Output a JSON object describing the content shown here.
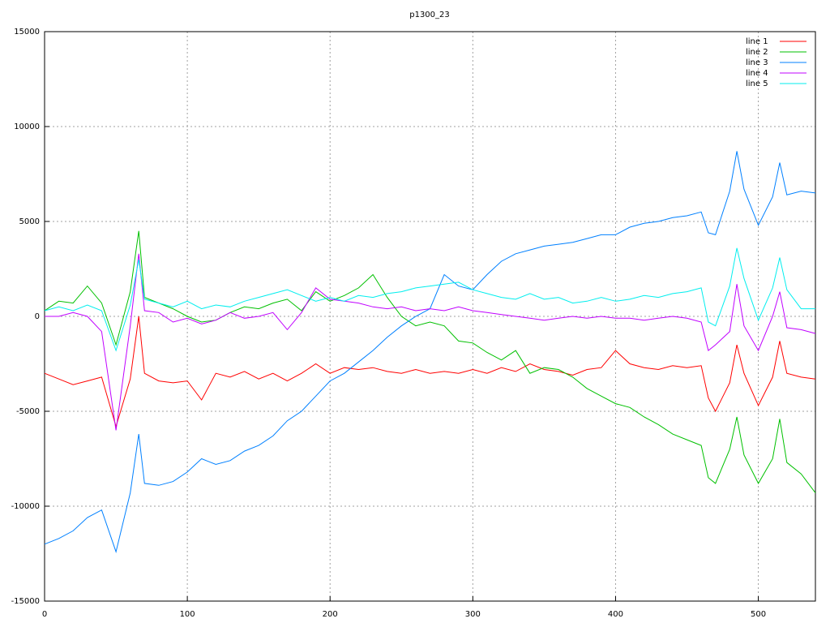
{
  "chart_data": {
    "type": "line",
    "title": "p1300_23",
    "x": [
      0,
      10,
      20,
      30,
      40,
      50,
      60,
      66,
      70,
      80,
      90,
      100,
      110,
      120,
      130,
      140,
      150,
      160,
      170,
      180,
      190,
      200,
      210,
      220,
      230,
      240,
      250,
      260,
      270,
      280,
      290,
      300,
      310,
      320,
      330,
      340,
      350,
      360,
      370,
      380,
      390,
      400,
      410,
      420,
      430,
      440,
      450,
      460,
      465,
      470,
      480,
      485,
      490,
      500,
      510,
      515,
      520,
      530,
      540
    ],
    "series": [
      {
        "name": "line 1",
        "color": "#ff0000",
        "values": [
          -3000,
          -3300,
          -3600,
          -3400,
          -3200,
          -5800,
          -3300,
          0,
          -3000,
          -3400,
          -3500,
          -3400,
          -4400,
          -3000,
          -3200,
          -2900,
          -3300,
          -3000,
          -3400,
          -3000,
          -2500,
          -3000,
          -2700,
          -2800,
          -2700,
          -2900,
          -3000,
          -2800,
          -3000,
          -2900,
          -3000,
          -2800,
          -3000,
          -2700,
          -2900,
          -2500,
          -2800,
          -2900,
          -3100,
          -2800,
          -2700,
          -1800,
          -2500,
          -2700,
          -2800,
          -2600,
          -2700,
          -2600,
          -4300,
          -5000,
          -3500,
          -1500,
          -3000,
          -4700,
          -3200,
          -1300,
          -3000,
          -3200,
          -3300
        ]
      },
      {
        "name": "line 2",
        "color": "#00c000",
        "values": [
          300,
          800,
          700,
          1600,
          700,
          -1500,
          1300,
          4500,
          1000,
          700,
          400,
          0,
          -300,
          -200,
          200,
          500,
          400,
          700,
          900,
          300,
          1300,
          800,
          1100,
          1500,
          2200,
          1000,
          0,
          -500,
          -300,
          -500,
          -1300,
          -1400,
          -1900,
          -2300,
          -1800,
          -3000,
          -2700,
          -2800,
          -3200,
          -3800,
          -4200,
          -4600,
          -4800,
          -5300,
          -5700,
          -6200,
          -6500,
          -6800,
          -8500,
          -8800,
          -7000,
          -5300,
          -7300,
          -8800,
          -7500,
          -5400,
          -7700,
          -8300,
          -9300
        ]
      },
      {
        "name": "line 3",
        "color": "#0080ff",
        "values": [
          -12000,
          -11700,
          -11300,
          -10600,
          -10200,
          -12400,
          -9300,
          -6200,
          -8800,
          -8900,
          -8700,
          -8200,
          -7500,
          -7800,
          -7600,
          -7100,
          -6800,
          -6300,
          -5500,
          -5000,
          -4200,
          -3400,
          -3000,
          -2400,
          -1800,
          -1100,
          -500,
          0,
          400,
          2200,
          1600,
          1400,
          2200,
          2900,
          3300,
          3500,
          3700,
          3800,
          3900,
          4100,
          4300,
          4300,
          4700,
          4900,
          5000,
          5200,
          5300,
          5500,
          4400,
          4300,
          6600,
          8700,
          6700,
          4800,
          6300,
          8100,
          6400,
          6600,
          6500
        ]
      },
      {
        "name": "line 4",
        "color": "#c000ff",
        "values": [
          0,
          0,
          200,
          0,
          -800,
          -6000,
          -500,
          3300,
          300,
          200,
          -300,
          -100,
          -400,
          -200,
          200,
          -100,
          0,
          200,
          -700,
          200,
          1500,
          900,
          800,
          700,
          500,
          400,
          500,
          300,
          400,
          300,
          500,
          300,
          200,
          100,
          0,
          -100,
          -200,
          -100,
          0,
          -100,
          0,
          -100,
          -100,
          -200,
          -100,
          0,
          -100,
          -300,
          -1800,
          -1500,
          -800,
          1700,
          -500,
          -1800,
          0,
          1300,
          -600,
          -700,
          -900
        ]
      },
      {
        "name": "line 5",
        "color": "#00eeee",
        "values": [
          300,
          500,
          300,
          600,
          300,
          -1800,
          600,
          3000,
          900,
          700,
          500,
          800,
          400,
          600,
          500,
          800,
          1000,
          1200,
          1400,
          1100,
          800,
          1000,
          800,
          1100,
          1000,
          1200,
          1300,
          1500,
          1600,
          1700,
          1800,
          1400,
          1200,
          1000,
          900,
          1200,
          900,
          1000,
          700,
          800,
          1000,
          800,
          900,
          1100,
          1000,
          1200,
          1300,
          1500,
          -300,
          -500,
          1600,
          3600,
          2000,
          -200,
          1500,
          3100,
          1400,
          400,
          400
        ]
      }
    ],
    "xlim": [
      0,
      540
    ],
    "ylim": [
      -15000,
      15000
    ],
    "xticks": [
      0,
      100,
      200,
      300,
      400,
      500
    ],
    "yticks": [
      -15000,
      -10000,
      -5000,
      0,
      5000,
      10000,
      15000
    ],
    "grid": true,
    "legend": "top-right"
  }
}
